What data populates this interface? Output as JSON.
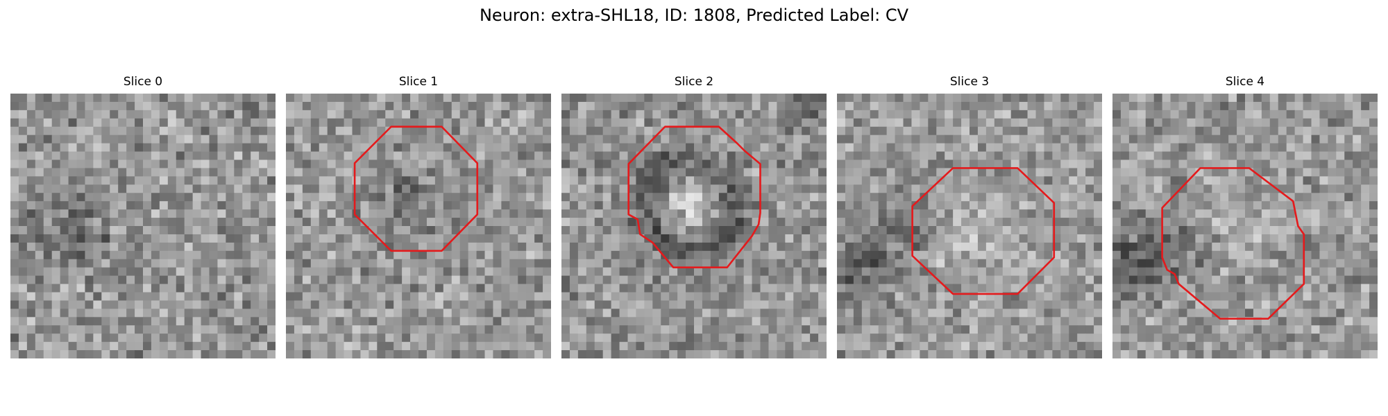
{
  "figure": {
    "title": "Neuron: extra-SHL18, ID: 1808, Predicted Label: CV"
  },
  "slices": [
    {
      "title": "Slice 0",
      "contour": false
    },
    {
      "title": "Slice 1",
      "contour": true,
      "contour_color": "#e41a1c"
    },
    {
      "title": "Slice 2",
      "contour": true,
      "contour_color": "#e41a1c"
    },
    {
      "title": "Slice 3",
      "contour": true,
      "contour_color": "#e41a1c"
    },
    {
      "title": "Slice 4",
      "contour": true,
      "contour_color": "#e41a1c"
    }
  ]
}
